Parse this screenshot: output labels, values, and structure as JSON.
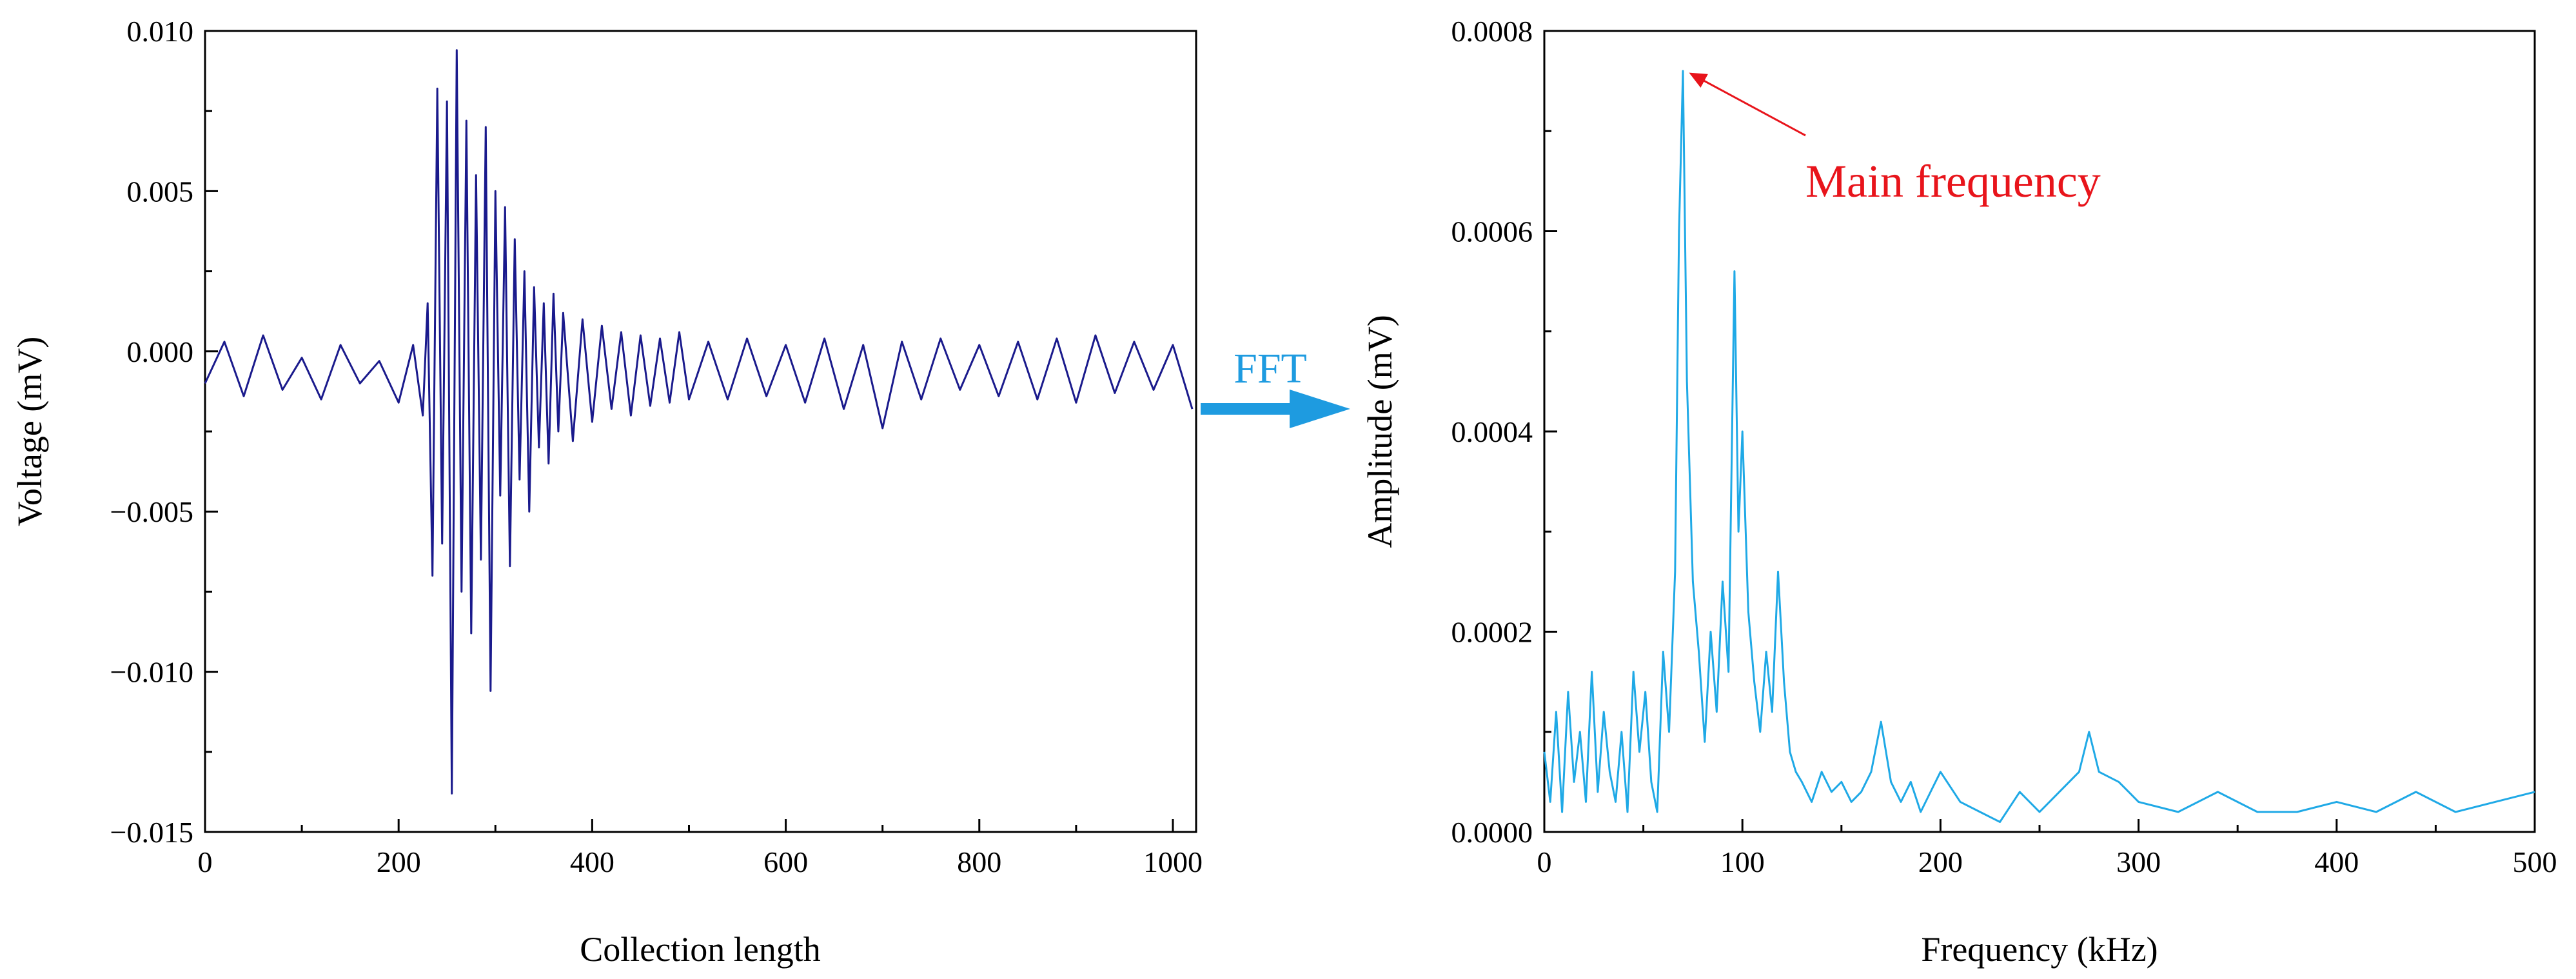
{
  "colors": {
    "time_series": "#1a1a8c",
    "spectrum": "#1fa9e6",
    "arrow": "#1e9be0",
    "annotation": "#e8141b",
    "axis": "#000000"
  },
  "connector": {
    "label": "FFT"
  },
  "chart_data": [
    {
      "type": "line",
      "title": "",
      "xlabel": "Collection length",
      "ylabel": "Voltage (mV)",
      "xlim": [
        0,
        1024
      ],
      "ylim": [
        -0.015,
        0.01
      ],
      "xticks": [
        0,
        200,
        400,
        600,
        800,
        1000
      ],
      "xtick_labels": [
        "0",
        "200",
        "400",
        "600",
        "800",
        "1000"
      ],
      "yticks": [
        0.01,
        0.005,
        0.0,
        -0.005,
        -0.01,
        -0.015
      ],
      "ytick_labels": [
        "0.010",
        "0.005",
        "0.000",
        "−0.005",
        "−0.010",
        "−0.015"
      ],
      "series": [
        {
          "name": "Voltage",
          "x": [
            0,
            20,
            40,
            60,
            80,
            100,
            120,
            140,
            160,
            180,
            200,
            215,
            225,
            230,
            235,
            240,
            245,
            250,
            255,
            260,
            265,
            270,
            275,
            280,
            285,
            290,
            295,
            300,
            305,
            310,
            315,
            320,
            325,
            330,
            335,
            340,
            345,
            350,
            355,
            360,
            365,
            370,
            380,
            390,
            400,
            410,
            420,
            430,
            440,
            450,
            460,
            470,
            480,
            490,
            500,
            520,
            540,
            560,
            580,
            600,
            620,
            640,
            660,
            680,
            700,
            720,
            740,
            760,
            780,
            800,
            820,
            840,
            860,
            880,
            900,
            920,
            940,
            960,
            980,
            1000,
            1020
          ],
          "values": [
            -0.001,
            0.0003,
            -0.0014,
            0.0005,
            -0.0012,
            -0.0002,
            -0.0015,
            0.0002,
            -0.001,
            -0.0003,
            -0.0016,
            0.0002,
            -0.002,
            0.0015,
            -0.007,
            0.0082,
            -0.006,
            0.0078,
            -0.0138,
            0.0094,
            -0.0075,
            0.0072,
            -0.0088,
            0.0055,
            -0.0065,
            0.007,
            -0.0106,
            0.005,
            -0.0045,
            0.0045,
            -0.0067,
            0.0035,
            -0.004,
            0.0025,
            -0.005,
            0.002,
            -0.003,
            0.0015,
            -0.0035,
            0.0018,
            -0.0025,
            0.0012,
            -0.0028,
            0.001,
            -0.0022,
            0.0008,
            -0.0018,
            0.0006,
            -0.002,
            0.0005,
            -0.0017,
            0.0004,
            -0.0016,
            0.0006,
            -0.0015,
            0.0003,
            -0.0015,
            0.0004,
            -0.0014,
            0.0002,
            -0.0016,
            0.0004,
            -0.0018,
            0.0002,
            -0.0024,
            0.0003,
            -0.0015,
            0.0004,
            -0.0012,
            0.0002,
            -0.0014,
            0.0003,
            -0.0015,
            0.0004,
            -0.0016,
            0.0005,
            -0.0013,
            0.0003,
            -0.0012,
            0.0002,
            -0.0018
          ]
        }
      ]
    },
    {
      "type": "line",
      "title": "",
      "xlabel": "Frequency (kHz)",
      "ylabel": "Amplitude (mV)",
      "xlim": [
        0,
        500
      ],
      "ylim": [
        0,
        0.0008
      ],
      "xticks": [
        0,
        100,
        200,
        300,
        400,
        500
      ],
      "xtick_labels": [
        "0",
        "100",
        "200",
        "300",
        "400",
        "500"
      ],
      "yticks": [
        0.0008,
        0.0006,
        0.0004,
        0.0002,
        0.0
      ],
      "ytick_labels": [
        "0.0008",
        "0.0006",
        "0.0004",
        "0.0002",
        "0.0000"
      ],
      "annotations": [
        {
          "text": "Main frequency",
          "x": 70,
          "y": 0.00076
        }
      ],
      "series": [
        {
          "name": "Amplitude",
          "x": [
            0,
            3,
            6,
            9,
            12,
            15,
            18,
            21,
            24,
            27,
            30,
            33,
            36,
            39,
            42,
            45,
            48,
            51,
            54,
            57,
            60,
            63,
            66,
            68,
            70,
            72,
            75,
            78,
            81,
            84,
            87,
            90,
            93,
            96,
            98,
            100,
            103,
            106,
            109,
            112,
            115,
            118,
            121,
            124,
            127,
            130,
            135,
            140,
            145,
            150,
            155,
            160,
            165,
            170,
            175,
            180,
            185,
            190,
            195,
            200,
            210,
            220,
            230,
            240,
            250,
            260,
            270,
            275,
            280,
            290,
            300,
            320,
            340,
            360,
            380,
            400,
            420,
            440,
            460,
            480,
            500
          ],
          "values": [
            8e-05,
            3e-05,
            0.00012,
            2e-05,
            0.00014,
            5e-05,
            0.0001,
            3e-05,
            0.00016,
            4e-05,
            0.00012,
            6e-05,
            3e-05,
            0.0001,
            2e-05,
            0.00016,
            8e-05,
            0.00014,
            5e-05,
            2e-05,
            0.00018,
            0.0001,
            0.00026,
            0.0006,
            0.00076,
            0.00045,
            0.00025,
            0.00018,
            9e-05,
            0.0002,
            0.00012,
            0.00025,
            0.00016,
            0.00056,
            0.0003,
            0.0004,
            0.00022,
            0.00015,
            0.0001,
            0.00018,
            0.00012,
            0.00026,
            0.00015,
            8e-05,
            6e-05,
            5e-05,
            3e-05,
            6e-05,
            4e-05,
            5e-05,
            3e-05,
            4e-05,
            6e-05,
            0.00011,
            5e-05,
            3e-05,
            5e-05,
            2e-05,
            4e-05,
            6e-05,
            3e-05,
            2e-05,
            1e-05,
            4e-05,
            2e-05,
            4e-05,
            6e-05,
            0.0001,
            6e-05,
            5e-05,
            3e-05,
            2e-05,
            4e-05,
            2e-05,
            2e-05,
            3e-05,
            2e-05,
            4e-05,
            2e-05,
            3e-05,
            4e-05
          ]
        }
      ]
    }
  ]
}
